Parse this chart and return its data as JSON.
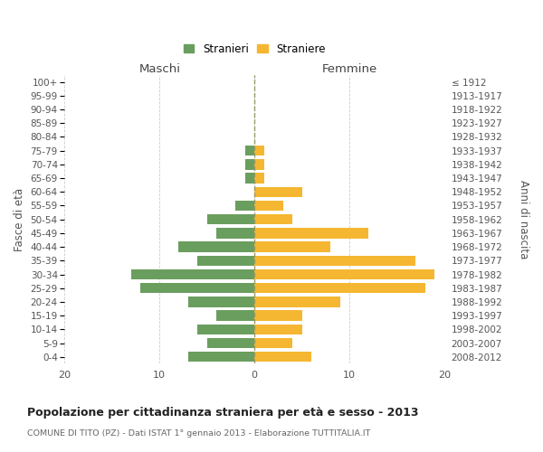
{
  "age_groups": [
    "0-4",
    "5-9",
    "10-14",
    "15-19",
    "20-24",
    "25-29",
    "30-34",
    "35-39",
    "40-44",
    "45-49",
    "50-54",
    "55-59",
    "60-64",
    "65-69",
    "70-74",
    "75-79",
    "80-84",
    "85-89",
    "90-94",
    "95-99",
    "100+"
  ],
  "birth_years": [
    "2008-2012",
    "2003-2007",
    "1998-2002",
    "1993-1997",
    "1988-1992",
    "1983-1987",
    "1978-1982",
    "1973-1977",
    "1968-1972",
    "1963-1967",
    "1958-1962",
    "1953-1957",
    "1948-1952",
    "1943-1947",
    "1938-1942",
    "1933-1937",
    "1928-1932",
    "1923-1927",
    "1918-1922",
    "1913-1917",
    "≤ 1912"
  ],
  "maschi": [
    7,
    5,
    6,
    4,
    7,
    12,
    13,
    6,
    8,
    4,
    5,
    2,
    0,
    1,
    1,
    1,
    0,
    0,
    0,
    0,
    0
  ],
  "femmine": [
    6,
    4,
    5,
    5,
    9,
    18,
    19,
    17,
    8,
    12,
    4,
    3,
    5,
    1,
    1,
    1,
    0,
    0,
    0,
    0,
    0
  ],
  "color_maschi": "#6a9e5e",
  "color_femmine": "#f5b731",
  "title": "Popolazione per cittadinanza straniera per età e sesso - 2013",
  "subtitle": "COMUNE DI TITO (PZ) - Dati ISTAT 1° gennaio 2013 - Elaborazione TUTTITALIA.IT",
  "header_left": "Maschi",
  "header_right": "Femmine",
  "ylabel_left": "Fasce di età",
  "ylabel_right": "Anni di nascita",
  "xlim": 20,
  "legend_maschi": "Stranieri",
  "legend_femmine": "Straniere",
  "background_color": "#ffffff",
  "grid_color": "#cccccc"
}
